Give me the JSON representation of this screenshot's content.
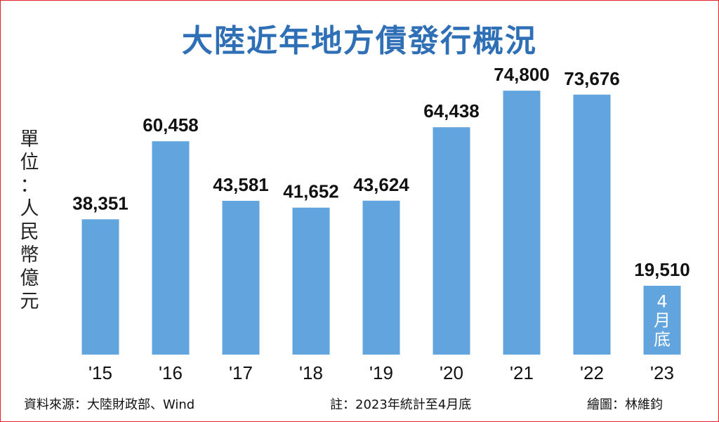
{
  "title": "大陸近年地方債發行概況",
  "unit_label": "單位：人民幣億元",
  "chart_data": {
    "type": "bar",
    "categories": [
      "'15",
      "'16",
      "'17",
      "'18",
      "'19",
      "'20",
      "'21",
      "'22",
      "'23"
    ],
    "values": [
      38351,
      60458,
      43581,
      41652,
      43624,
      64438,
      74800,
      73676,
      19510
    ],
    "value_labels": [
      "38,351",
      "60,458",
      "43,581",
      "41,652",
      "43,624",
      "64,438",
      "74,800",
      "73,676",
      "19,510"
    ],
    "bar_annotations": [
      {
        "category": "'23",
        "text": [
          "4",
          "月",
          "底"
        ]
      }
    ],
    "ylim": [
      0,
      80000
    ],
    "bar_color": "#62a4dd",
    "grid": false
  },
  "footer": {
    "source": "資料來源：大陸財政部、Wind",
    "note": "註：2023年統計至4月底",
    "credit": "繪圖：林維鈞"
  }
}
